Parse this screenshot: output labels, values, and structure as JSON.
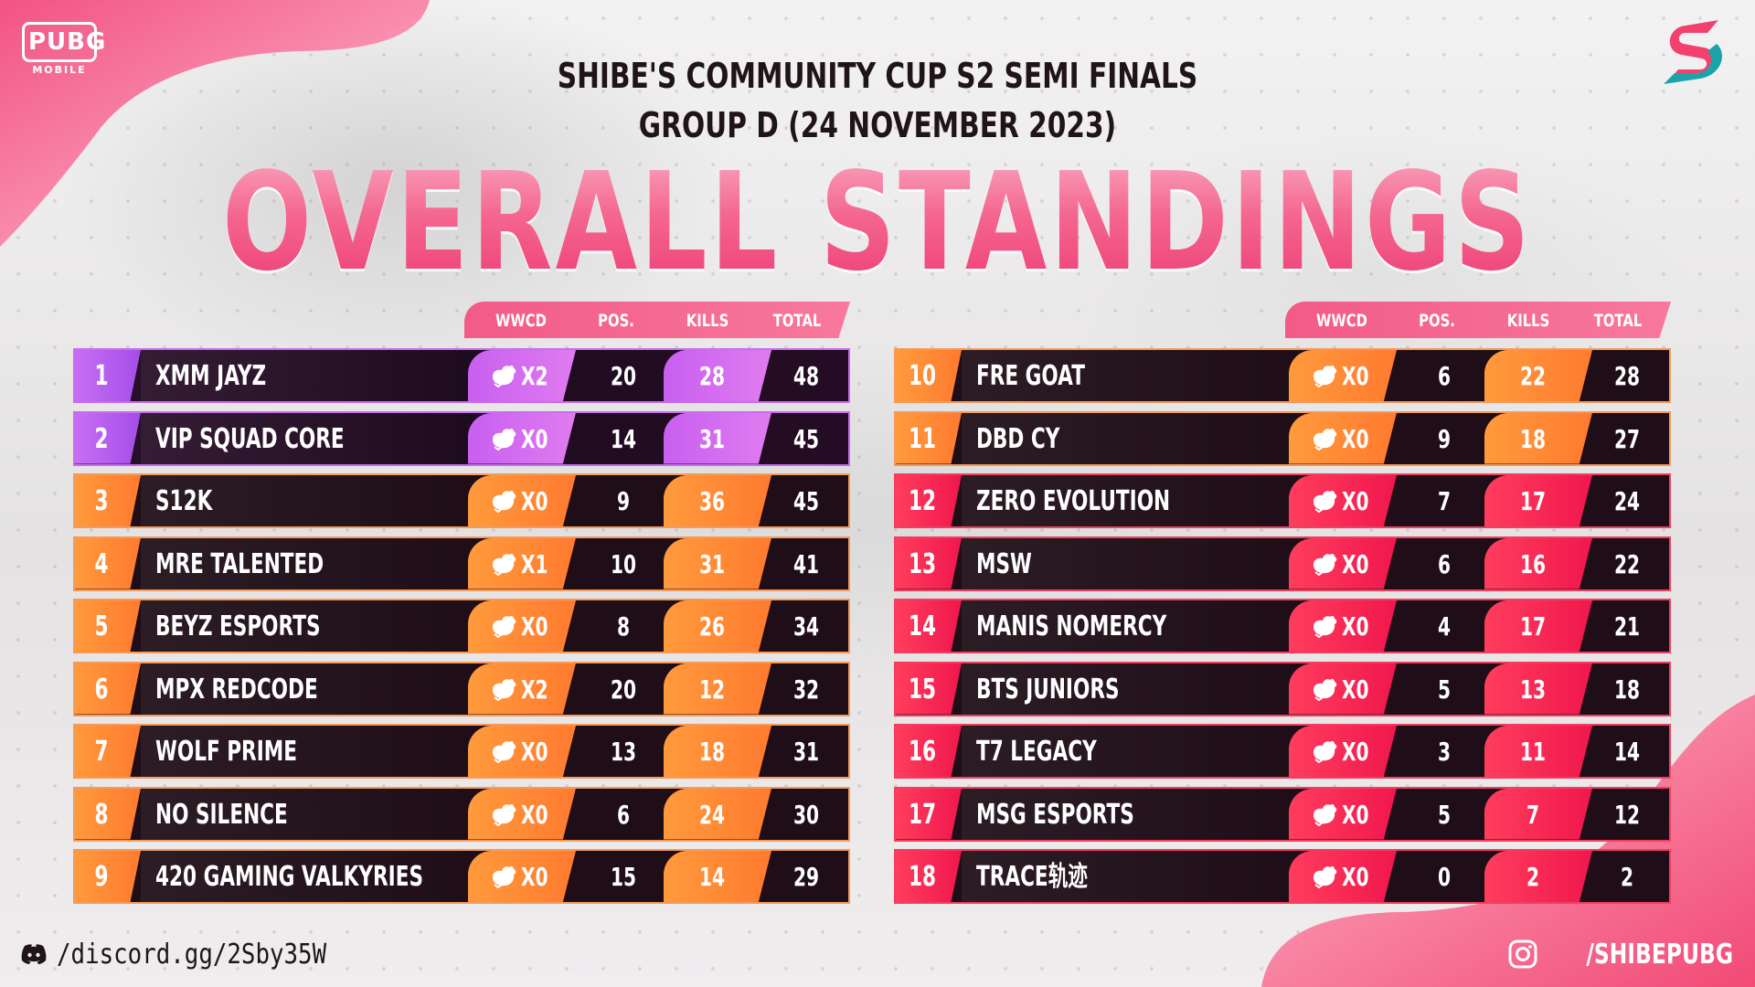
{
  "header": {
    "brand_logo": "PUBG",
    "brand_logo_sub": "MOBILE",
    "title_line_1": "SHIBE'S COMMUNITY CUP S2 SEMI FINALS",
    "title_line_2": "GROUP D (24 NOVEMBER 2023)",
    "main_title": "OVERALL STANDINGS"
  },
  "columns": {
    "wwcd": "WWCD",
    "pos_pts": "POS. PTS.",
    "kills": "KILLS",
    "total": "TOTAL"
  },
  "colors": {
    "purple": "#c85ff0",
    "orange": "#ff8a34",
    "red": "#f0174d",
    "row_dark": "#1f0e17",
    "title_pink": "#f4668f"
  },
  "left_table": [
    {
      "rank": "1",
      "team": "XMM JAYZ",
      "wwcd": "X2",
      "pos_pts": "20",
      "kills": "28",
      "total": "48",
      "tier": "purple"
    },
    {
      "rank": "2",
      "team": "VIP SQUAD CORE",
      "wwcd": "X0",
      "pos_pts": "14",
      "kills": "31",
      "total": "45",
      "tier": "purple"
    },
    {
      "rank": "3",
      "team": "S12K",
      "wwcd": "X0",
      "pos_pts": "9",
      "kills": "36",
      "total": "45",
      "tier": "orange"
    },
    {
      "rank": "4",
      "team": "MRE TALENTED",
      "wwcd": "X1",
      "pos_pts": "10",
      "kills": "31",
      "total": "41",
      "tier": "orange"
    },
    {
      "rank": "5",
      "team": "BEYZ ESPORTS",
      "wwcd": "X0",
      "pos_pts": "8",
      "kills": "26",
      "total": "34",
      "tier": "orange"
    },
    {
      "rank": "6",
      "team": "MPX REDCODE",
      "wwcd": "X2",
      "pos_pts": "20",
      "kills": "12",
      "total": "32",
      "tier": "orange"
    },
    {
      "rank": "7",
      "team": "WOLF PRIME",
      "wwcd": "X0",
      "pos_pts": "13",
      "kills": "18",
      "total": "31",
      "tier": "orange"
    },
    {
      "rank": "8",
      "team": "NO SILENCE",
      "wwcd": "X0",
      "pos_pts": "6",
      "kills": "24",
      "total": "30",
      "tier": "orange"
    },
    {
      "rank": "9",
      "team": "420 GAMING VALKYRIES",
      "wwcd": "X0",
      "pos_pts": "15",
      "kills": "14",
      "total": "29",
      "tier": "orange"
    }
  ],
  "right_table": [
    {
      "rank": "10",
      "team": "FRE GOAT",
      "wwcd": "X0",
      "pos_pts": "6",
      "kills": "22",
      "total": "28",
      "tier": "orange"
    },
    {
      "rank": "11",
      "team": "DBD CY",
      "wwcd": "X0",
      "pos_pts": "9",
      "kills": "18",
      "total": "27",
      "tier": "orange"
    },
    {
      "rank": "12",
      "team": "ZERO EVOLUTION",
      "wwcd": "X0",
      "pos_pts": "7",
      "kills": "17",
      "total": "24",
      "tier": "red"
    },
    {
      "rank": "13",
      "team": "MSW",
      "wwcd": "X0",
      "pos_pts": "6",
      "kills": "16",
      "total": "22",
      "tier": "red"
    },
    {
      "rank": "14",
      "team": "MANIS NOMERCY",
      "wwcd": "X0",
      "pos_pts": "4",
      "kills": "17",
      "total": "21",
      "tier": "red"
    },
    {
      "rank": "15",
      "team": "BTS JUNIORS",
      "wwcd": "X0",
      "pos_pts": "5",
      "kills": "13",
      "total": "18",
      "tier": "red"
    },
    {
      "rank": "16",
      "team": "T7 LEGACY",
      "wwcd": "X0",
      "pos_pts": "3",
      "kills": "11",
      "total": "14",
      "tier": "red"
    },
    {
      "rank": "17",
      "team": "MSG ESPORTS",
      "wwcd": "X0",
      "pos_pts": "5",
      "kills": "7",
      "total": "12",
      "tier": "red"
    },
    {
      "rank": "18",
      "team": "TRACE轨迹",
      "wwcd": "X0",
      "pos_pts": "0",
      "kills": "2",
      "total": "2",
      "tier": "red"
    }
  ],
  "footer": {
    "discord": "/discord.gg/2Sby35W",
    "instagram": "/SHIBEPUBG",
    "discord_icon": "discord-icon",
    "instagram_icon": "instagram-icon"
  }
}
